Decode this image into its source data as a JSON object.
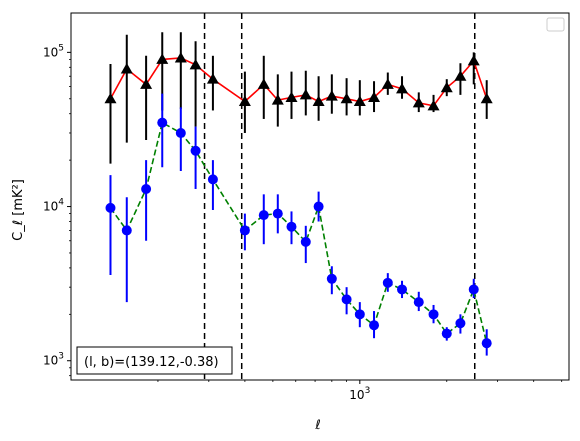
{
  "chart_data": {
    "type": "scatter",
    "xscale": "log",
    "yscale": "log",
    "xlim": [
      100,
      5300
    ],
    "ylim": [
      750,
      180000
    ],
    "xlabel": "ℓ",
    "ylabel": "C_ℓ [mK²]",
    "x_ticks": [
      {
        "value": 1000,
        "label_base": "10",
        "label_exp": "3"
      }
    ],
    "y_ticks": [
      {
        "value": 1000,
        "label_base": "10",
        "label_exp": "3"
      },
      {
        "value": 10000,
        "label_base": "10",
        "label_exp": "4"
      },
      {
        "value": 100000,
        "label_base": "10",
        "label_exp": "5"
      }
    ],
    "legend": {
      "placement": "top-right",
      "entries": []
    },
    "annotation": {
      "text": "(l, b)=(139.12,-0.38)",
      "placement": "bottom-left"
    },
    "vlines": [
      290,
      390,
      2500
    ],
    "x": [
      137,
      156,
      182,
      207,
      240,
      270,
      310,
      350,
      400,
      465,
      520,
      580,
      650,
      720,
      800,
      900,
      1000,
      1120,
      1250,
      1400,
      1600,
      1800,
      2000,
      2230,
      2480,
      2750,
      3100,
      3500,
      4200
    ],
    "series": [
      {
        "marker": "triangle",
        "color": "#000000",
        "line_color": "#ff0000",
        "line_style": "solid",
        "errorbar_color": "#000000",
        "values": [
          50000,
          78000,
          62000,
          90000,
          92000,
          83000,
          67000,
          48000,
          62000,
          49000,
          51000,
          53000,
          48000,
          52000,
          50000,
          48000,
          51000,
          62000,
          58000,
          47000,
          45000,
          59000,
          70000,
          88000,
          50000
        ],
        "x_index": [
          0,
          1,
          2,
          3,
          4,
          5,
          6,
          8,
          9,
          10,
          11,
          12,
          13,
          14,
          15,
          16,
          17,
          18,
          19,
          20,
          21,
          22,
          23,
          24,
          25
        ],
        "err_low": [
          19000,
          26000,
          27000,
          42000,
          43000,
          33000,
          42000,
          30000,
          37000,
          33000,
          37000,
          39000,
          36000,
          40000,
          39000,
          39000,
          41000,
          53000,
          50000,
          41000,
          41000,
          52000,
          53000,
          62000,
          37000
        ],
        "err_high": [
          84000,
          130000,
          95000,
          135000,
          135000,
          118000,
          95000,
          75000,
          95000,
          72000,
          75000,
          76000,
          70000,
          72000,
          68000,
          66000,
          65000,
          74000,
          70000,
          55000,
          53000,
          67000,
          85000,
          100000,
          66000
        ]
      },
      {
        "marker": "circle",
        "color": "#0000ff",
        "line_color": "#008000",
        "line_style": "dashed",
        "errorbar_color": "#0000ff",
        "values": [
          9800,
          7000,
          13000,
          35000,
          30000,
          23000,
          15000,
          7000,
          8800,
          9000,
          7400,
          5900,
          10000,
          3400,
          2500,
          2000,
          1700,
          3200,
          2900,
          2400,
          2000,
          1500,
          1750,
          2900,
          1300
        ],
        "x_index": [
          0,
          1,
          2,
          3,
          4,
          5,
          6,
          8,
          9,
          10,
          11,
          12,
          13,
          14,
          15,
          16,
          17,
          18,
          19,
          20,
          21,
          22,
          23,
          24,
          25
        ],
        "err_low": [
          3600,
          2400,
          6000,
          18000,
          17000,
          13000,
          9500,
          5200,
          5700,
          6700,
          5700,
          4300,
          8000,
          2700,
          2000,
          1650,
          1400,
          2800,
          2550,
          2100,
          1750,
          1350,
          1500,
          2550,
          1080
        ],
        "err_high": [
          16000,
          11500,
          20000,
          54000,
          44000,
          33000,
          20000,
          9000,
          12000,
          12000,
          9300,
          7500,
          12500,
          4100,
          3000,
          2400,
          2100,
          3700,
          3300,
          2800,
          2300,
          1650,
          2000,
          3400,
          1600
        ]
      }
    ]
  }
}
